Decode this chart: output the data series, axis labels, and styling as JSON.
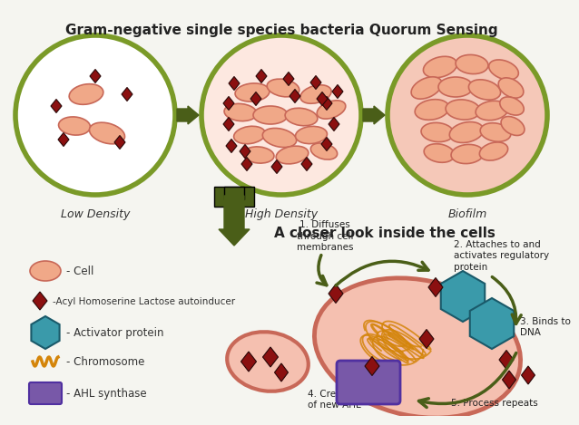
{
  "title": "Gram-negative single species bacteria Quorum Sensing",
  "title_fontsize": 11,
  "background_color": "#f5f5f0",
  "circle_fill_low": "#ffffff",
  "circle_fill_high": "#fde8e0",
  "circle_fill_bio": "#f5c8b8",
  "circle_edge": "#7a9a28",
  "cell_color": "#f0a888",
  "cell_outline": "#c86858",
  "diamond_color": "#8b1010",
  "hex_color": "#3a9aaa",
  "chromosome_color": "#d4850a",
  "ahl_color": "#7858a8",
  "arrow_color": "#4a5e18",
  "label_low": "Low Density",
  "label_high": "High Density",
  "label_bio": "Biofilm",
  "label_closer": "A closer look inside the cells",
  "legend_cell": "- Cell",
  "legend_ahl": "-Acyl Homoserine Lactose autoinducer",
  "legend_act": "- Activator protein",
  "legend_chrom": "- Chromosome",
  "legend_syn": "- AHL synthase",
  "step1": "1. Diffuses\nthrough cell\nmembranes",
  "step2": "2. Attaches to and\nactivates regulatory\nprotein",
  "step3": "3. Binds to\nDNA",
  "step4": "4. Creation\nof new AHL",
  "step5": "5. Process repeats"
}
